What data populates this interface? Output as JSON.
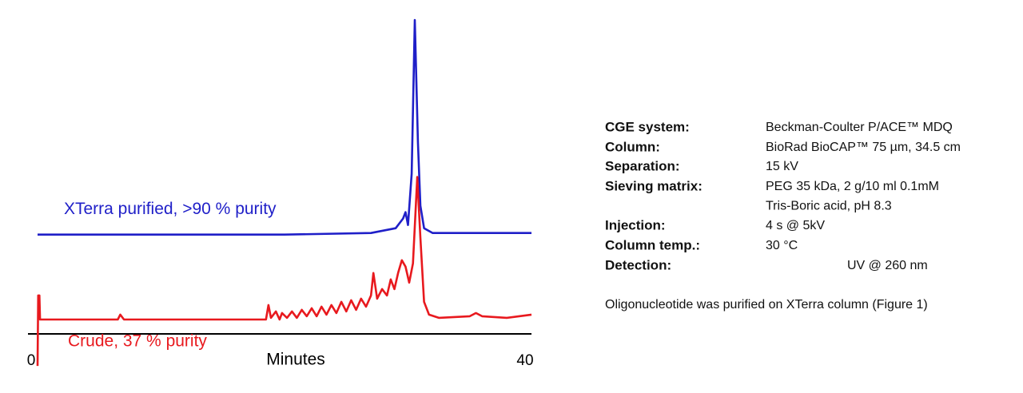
{
  "chart_data": {
    "type": "line",
    "xlabel": "Minutes",
    "xlim": [
      0,
      40
    ],
    "xticks": [
      0,
      40
    ],
    "series": [
      {
        "name": "XTerra purified,  >90 % purity",
        "color": "#1f1fc8",
        "x": [
          0,
          20,
          27,
          29,
          29.6,
          29.8,
          30,
          30.3,
          30.55,
          30.8,
          31.0,
          31.3,
          32,
          35,
          40
        ],
        "values": [
          31,
          31,
          31.5,
          33,
          36,
          38,
          34,
          50,
          98,
          60,
          40,
          33,
          31.5,
          31.5,
          31.5
        ]
      },
      {
        "name": "Crude, 37 % purity",
        "color": "#e8191e",
        "x": [
          0,
          0.05,
          0.15,
          0.2,
          6.5,
          6.7,
          7,
          18.5,
          18.7,
          18.9,
          19.3,
          19.6,
          19.8,
          20.2,
          20.6,
          21,
          21.4,
          21.8,
          22.2,
          22.6,
          23,
          23.4,
          23.8,
          24.2,
          24.6,
          25,
          25.4,
          25.8,
          26.2,
          26.6,
          27,
          27.2,
          27.5,
          27.9,
          28.3,
          28.6,
          28.9,
          29.2,
          29.5,
          29.8,
          30.1,
          30.4,
          30.75,
          31.0,
          31.3,
          31.7,
          32.5,
          35,
          35.5,
          36,
          38,
          39,
          40
        ],
        "values": [
          -10,
          12,
          12,
          4.5,
          4.5,
          6,
          4.5,
          4.5,
          9,
          5,
          7,
          4.5,
          6.5,
          5,
          7,
          5,
          7.5,
          5.5,
          8,
          5.5,
          8.5,
          6,
          9,
          6.5,
          10,
          7,
          10.5,
          7.5,
          11,
          8.5,
          12,
          19,
          11,
          14,
          12,
          17,
          14,
          19,
          23,
          21,
          16,
          22,
          49,
          30,
          10,
          6,
          5,
          5.5,
          6.5,
          5.5,
          5,
          5.5,
          6
        ]
      }
    ]
  },
  "conditions": [
    {
      "label": "CGE system:",
      "value": [
        "Beckman-Coulter P/ACE™ MDQ"
      ]
    },
    {
      "label": "Column:",
      "value": [
        "BioRad BioCAP™ 75 µm, 34.5 cm"
      ]
    },
    {
      "label": "Separation:",
      "value": [
        "15 kV"
      ]
    },
    {
      "label": "Sieving matrix:",
      "value": [
        "PEG 35 kDa, 2 g/10 ml 0.1mM",
        "Tris-Boric acid, pH 8.3"
      ]
    },
    {
      "label": "Injection:",
      "value": [
        "4 s @ 5kV"
      ]
    },
    {
      "label": "Column temp.:",
      "value": [
        "30 °C"
      ]
    },
    {
      "label": "Detection:",
      "value": [
        "UV @ 260 nm"
      ]
    }
  ],
  "footnote": "Oligonucleotide was purified on XTerra column (Figure 1)"
}
